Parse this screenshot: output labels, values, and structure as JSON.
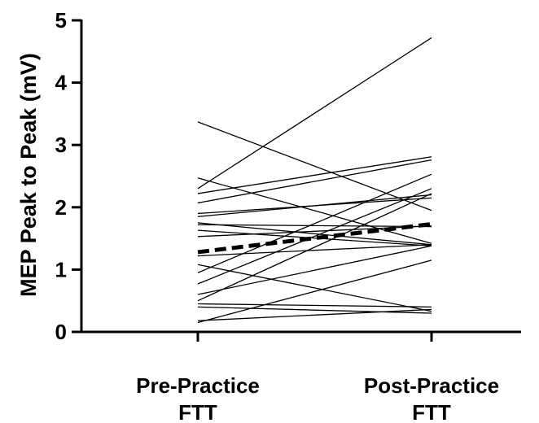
{
  "chart_data": {
    "type": "line",
    "title": "",
    "xlabel": "",
    "ylabel": "MEP Peak to Peak (mV)",
    "categories": [
      "Pre-Practice FTT",
      "Post-Practice FTT"
    ],
    "category_lines": [
      [
        "Pre-Practice",
        "FTT"
      ],
      [
        "Post-Practice",
        "FTT"
      ]
    ],
    "ylim": [
      0,
      5
    ],
    "yticks": [
      0,
      1,
      2,
      3,
      4,
      5
    ],
    "grid": false,
    "individual_lines": [
      [
        3.37,
        1.95
      ],
      [
        2.47,
        1.42
      ],
      [
        2.3,
        4.72
      ],
      [
        2.22,
        2.81
      ],
      [
        2.07,
        2.76
      ],
      [
        1.9,
        2.15
      ],
      [
        1.85,
        2.2
      ],
      [
        1.75,
        1.4
      ],
      [
        1.72,
        1.69
      ],
      [
        1.63,
        1.38
      ],
      [
        1.53,
        1.7
      ],
      [
        1.22,
        1.4
      ],
      [
        1.08,
        0.33
      ],
      [
        0.95,
        2.53
      ],
      [
        0.77,
        2.3
      ],
      [
        0.6,
        1.38
      ],
      [
        0.5,
        2.22
      ],
      [
        0.45,
        0.4
      ],
      [
        0.4,
        0.3
      ],
      [
        0.18,
        0.36
      ],
      [
        0.15,
        1.15
      ]
    ],
    "mean_line": [
      1.28,
      1.73
    ],
    "colors": {
      "individual": "#000000",
      "mean": "#000000"
    }
  }
}
